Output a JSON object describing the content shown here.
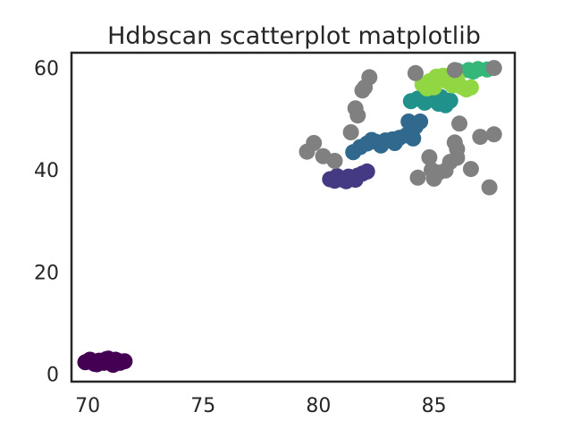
{
  "chart_data": {
    "type": "scatter",
    "title": "Hdbscan scatterplot matplotlib",
    "xlabel": "",
    "ylabel": "",
    "xlim": [
      69.3,
      88.5
    ],
    "ylim": [
      -1.5,
      63
    ],
    "xticks": [
      70,
      75,
      80,
      85
    ],
    "yticks": [
      0,
      20,
      40,
      60
    ],
    "grid": false,
    "legend": "none",
    "series": [
      {
        "color": "#440154",
        "points": [
          [
            69.9,
            2.3
          ],
          [
            70.1,
            2.8
          ],
          [
            70.3,
            2.0
          ],
          [
            70.5,
            2.6
          ],
          [
            70.7,
            2.2
          ],
          [
            70.9,
            3.0
          ],
          [
            71.0,
            2.4
          ],
          [
            71.2,
            2.8
          ],
          [
            71.4,
            2.2
          ],
          [
            71.6,
            2.5
          ],
          [
            70.4,
            1.9
          ],
          [
            71.1,
            1.8
          ],
          [
            70.8,
            2.9
          ],
          [
            71.3,
            2.6
          ]
        ]
      },
      {
        "color": "#443983",
        "points": [
          [
            80.5,
            38.2
          ],
          [
            80.7,
            37.9
          ],
          [
            80.9,
            38.5
          ],
          [
            81.1,
            38.0
          ],
          [
            81.3,
            38.7
          ],
          [
            81.5,
            38.3
          ],
          [
            81.7,
            38.9
          ],
          [
            81.9,
            39.3
          ],
          [
            82.1,
            39.7
          ],
          [
            80.8,
            38.8
          ],
          [
            81.2,
            37.8
          ],
          [
            81.6,
            38.1
          ]
        ]
      },
      {
        "color": "#31688e",
        "points": [
          [
            81.5,
            43.5
          ],
          [
            81.8,
            44.5
          ],
          [
            82.1,
            45.2
          ],
          [
            82.5,
            45.5
          ],
          [
            82.9,
            45.8
          ],
          [
            83.2,
            46.0
          ],
          [
            83.5,
            46.3
          ],
          [
            83.8,
            46.8
          ],
          [
            84.0,
            47.5
          ],
          [
            84.2,
            48.5
          ],
          [
            84.4,
            49.5
          ],
          [
            83.9,
            49.5
          ],
          [
            82.7,
            44.8
          ],
          [
            83.3,
            45.3
          ],
          [
            84.1,
            46.2
          ],
          [
            82.3,
            45.9
          ]
        ]
      },
      {
        "color": "#21918c",
        "points": [
          [
            84.0,
            53.5
          ],
          [
            84.3,
            54.0
          ],
          [
            84.6,
            53.2
          ],
          [
            84.9,
            53.8
          ],
          [
            85.2,
            53.0
          ],
          [
            85.5,
            52.7
          ],
          [
            85.7,
            53.6
          ],
          [
            85.3,
            54.3
          ],
          [
            84.7,
            54.6
          ]
        ]
      },
      {
        "color": "#35b779",
        "points": [
          [
            86.0,
            59.5
          ],
          [
            86.5,
            59.6
          ],
          [
            86.9,
            59.8
          ],
          [
            87.3,
            59.7
          ],
          [
            86.7,
            59.3
          ]
        ]
      },
      {
        "color": "#90d743",
        "points": [
          [
            84.5,
            56.8
          ],
          [
            84.8,
            57.4
          ],
          [
            85.0,
            56.2
          ],
          [
            85.2,
            57.9
          ],
          [
            85.4,
            58.5
          ],
          [
            85.6,
            57.3
          ],
          [
            85.8,
            56.6
          ],
          [
            86.0,
            57.8
          ],
          [
            86.2,
            56.3
          ],
          [
            86.4,
            55.8
          ],
          [
            86.6,
            56.2
          ],
          [
            85.1,
            58.3
          ],
          [
            85.9,
            58.7
          ],
          [
            84.7,
            56.0
          ]
        ]
      },
      {
        "color": "#808080",
        "points": [
          [
            79.5,
            43.6
          ],
          [
            79.8,
            45.3
          ],
          [
            80.2,
            42.7
          ],
          [
            80.7,
            41.8
          ],
          [
            81.4,
            47.4
          ],
          [
            81.6,
            52.1
          ],
          [
            81.7,
            50.7
          ],
          [
            81.9,
            55.6
          ],
          [
            82.2,
            58.2
          ],
          [
            82.0,
            56.2
          ],
          [
            84.2,
            59.0
          ],
          [
            84.3,
            38.5
          ],
          [
            84.8,
            42.5
          ],
          [
            84.9,
            40.0
          ],
          [
            85.0,
            38.3
          ],
          [
            85.2,
            39.5
          ],
          [
            85.5,
            39.9
          ],
          [
            85.7,
            41.6
          ],
          [
            85.9,
            45.4
          ],
          [
            86.0,
            44.1
          ],
          [
            86.0,
            42.4
          ],
          [
            86.1,
            49.1
          ],
          [
            86.6,
            40.2
          ],
          [
            87.0,
            46.5
          ],
          [
            87.4,
            36.6
          ],
          [
            87.6,
            47.0
          ],
          [
            87.6,
            60.0
          ],
          [
            85.9,
            59.6
          ]
        ]
      }
    ]
  }
}
